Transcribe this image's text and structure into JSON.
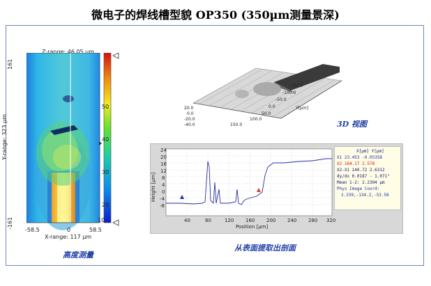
{
  "title": "微电子的焊线槽型貌   OP350 (350µm测量景深)",
  "height_map": {
    "z_range": "Z-range:  46.05 µm",
    "y_range": "Y-range:  323 µm",
    "x_range": "X-range:  117 µm",
    "y_top": "161",
    "y_bottom": "-161",
    "x_ticks": [
      "-58.5",
      "0",
      "58.5"
    ],
    "colorbar_ticks": [
      "50",
      "40",
      "30",
      "20",
      "10"
    ],
    "caption": "高度测量"
  },
  "view3d": {
    "caption": "3D 视图",
    "x_ticks": [
      "-150.0",
      "-100.0",
      "-50.0",
      "0.0",
      "50.0",
      "100.0",
      "150.0"
    ],
    "y_ticks": [
      "20.0",
      "0.0",
      "-20.0",
      "-40.0"
    ],
    "y_axis_label": "Y[µm]"
  },
  "profile": {
    "caption": "从表面提取出剖面",
    "xlabel": "Position [µm]",
    "ylabel": "Height [µm]",
    "x_ticks": [
      "40",
      "80",
      "120",
      "160",
      "200",
      "240",
      "280",
      "320"
    ],
    "y_ticks": [
      "24",
      "20",
      "16",
      "12",
      "8",
      "4",
      "0",
      "-4",
      "-8"
    ]
  },
  "coords": {
    "header": "X[µm]   Y[µm]",
    "x1_label": "X1",
    "x1_value": "23.453  -0.05358",
    "x2_label": "X2",
    "x2_value": "164.17  2.578",
    "x2x1": "X2-X1  140.72  2.6312",
    "slope": "dy/dx  0.0187 -  1.071°",
    "mean": "Mean 1-2:  2.2304 µm",
    "phys_label": "Phys Image Coord:",
    "phys_value": "2.339,-134.2,-53.58"
  }
}
